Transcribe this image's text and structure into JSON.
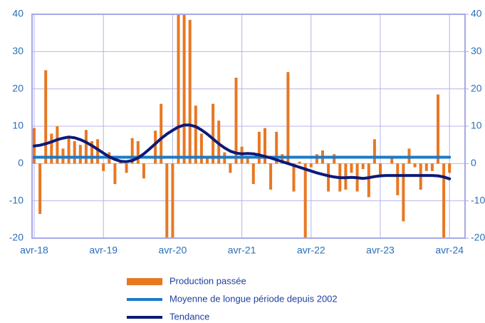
{
  "chart_data": {
    "type": "bar",
    "categories": [
      "avr-18",
      null,
      null,
      null,
      null,
      null,
      null,
      null,
      null,
      null,
      null,
      null,
      "avr-19",
      null,
      null,
      null,
      null,
      null,
      null,
      null,
      null,
      null,
      null,
      null,
      "avr-20",
      null,
      null,
      null,
      null,
      null,
      null,
      null,
      null,
      null,
      null,
      null,
      "avr-21",
      null,
      null,
      null,
      null,
      null,
      null,
      null,
      null,
      null,
      null,
      null,
      "avr-22",
      null,
      null,
      null,
      null,
      null,
      null,
      null,
      null,
      null,
      null,
      null,
      "avr-23",
      null,
      null,
      null,
      null,
      null,
      null,
      null,
      null,
      null,
      null,
      null,
      "avr-24"
    ],
    "series": [
      {
        "name": "Production passée",
        "type": "bar",
        "color": "#e87722",
        "values": [
          9.5,
          -13.5,
          25,
          8,
          10,
          4,
          7,
          6,
          5,
          9,
          6,
          6.5,
          -2,
          3,
          -5.5,
          0.5,
          -2.5,
          6.8,
          6,
          -4,
          0,
          8.8,
          16,
          -20,
          -20,
          40,
          40,
          38.5,
          15.5,
          8,
          2,
          16,
          11.5,
          3,
          -2.5,
          23,
          4.5,
          2,
          -5.5,
          8.5,
          9.5,
          -7,
          8.5,
          2.5,
          24.5,
          -7.5,
          0.5,
          -20,
          -1,
          2.5,
          3.5,
          -7.5,
          2.5,
          -7.5,
          -7,
          -2.5,
          -7.5,
          -1.5,
          -9,
          6.5,
          -3,
          0,
          1.5,
          -8.5,
          -15.5,
          4,
          -1,
          -7,
          -2,
          -2,
          18.5,
          -20,
          -2.5
        ]
      },
      {
        "name": "Moyenne de longue période depuis 2002",
        "type": "line",
        "color": "#1a7ac9",
        "values": [
          1.7,
          1.7,
          1.7,
          1.7,
          1.7,
          1.7,
          1.7,
          1.7,
          1.7,
          1.7,
          1.7,
          1.7,
          1.7,
          1.7,
          1.7,
          1.7,
          1.7,
          1.7,
          1.7,
          1.7,
          1.7,
          1.7,
          1.7,
          1.7,
          1.7,
          1.7,
          1.7,
          1.7,
          1.7,
          1.7,
          1.7,
          1.7,
          1.7,
          1.7,
          1.7,
          1.7,
          1.7,
          1.7,
          1.7,
          1.7,
          1.7,
          1.7,
          1.7,
          1.7,
          1.7,
          1.7,
          1.7,
          1.7,
          1.7,
          1.7,
          1.7,
          1.7,
          1.7,
          1.7,
          1.7,
          1.7,
          1.7,
          1.7,
          1.7,
          1.7,
          1.7,
          1.7,
          1.7,
          1.7,
          1.7,
          1.7,
          1.7,
          1.7,
          1.7,
          1.7,
          1.7,
          1.7,
          1.7
        ]
      },
      {
        "name": "Tendance",
        "type": "line",
        "color": "#0b1a78",
        "values": [
          4.7,
          4.9,
          5.3,
          5.8,
          6.4,
          6.8,
          7.1,
          6.9,
          6.4,
          5.7,
          4.8,
          3.8,
          2.8,
          1.8,
          1.1,
          0.6,
          0.5,
          0.8,
          1.5,
          2.6,
          3.9,
          5.3,
          6.7,
          7.9,
          8.9,
          9.8,
          10.3,
          10.3,
          9.9,
          9.0,
          7.9,
          6.6,
          5.3,
          4.2,
          3.3,
          2.8,
          2.6,
          2.7,
          2.6,
          2.3,
          1.9,
          1.5,
          1.0,
          0.5,
          0.0,
          -0.5,
          -1.0,
          -1.5,
          -2.0,
          -2.5,
          -2.9,
          -3.3,
          -3.6,
          -3.8,
          -3.8,
          -3.7,
          -3.8,
          -4.0,
          -3.8,
          -3.5,
          -3.3,
          -3.2,
          -3.2,
          -3.2,
          -3.2,
          -3.2,
          -3.2,
          -3.2,
          -3.2,
          -3.2,
          -3.3,
          -3.6,
          -4.1
        ]
      }
    ],
    "ylim": [
      -20,
      40
    ],
    "yticks": [
      -20,
      -10,
      0,
      10,
      20,
      30,
      40
    ],
    "y2lim": [
      -20,
      40
    ],
    "y2ticks": [
      -20,
      -10,
      0,
      10,
      20,
      30,
      40
    ],
    "grid": true,
    "legend": "bottom"
  }
}
